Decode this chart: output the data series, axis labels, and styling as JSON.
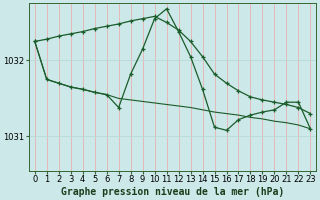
{
  "title": "Graphe pression niveau de la mer (hPa)",
  "bg_color": "#cce8e8",
  "line_color": "#1a5c2a",
  "grid_color_v": "#e8b0b0",
  "grid_color_h": "#b8d8d8",
  "xlim": [
    -0.5,
    23.5
  ],
  "ylim": [
    1030.55,
    1032.75
  ],
  "yticks": [
    1031,
    1032
  ],
  "xticks": [
    0,
    1,
    2,
    3,
    4,
    5,
    6,
    7,
    8,
    9,
    10,
    11,
    12,
    13,
    14,
    15,
    16,
    17,
    18,
    19,
    20,
    21,
    22,
    23
  ],
  "series1_x": [
    0,
    1,
    2,
    3,
    4,
    5,
    6,
    7,
    8,
    9,
    10,
    11,
    12,
    13,
    14,
    15,
    16,
    17,
    18,
    19,
    20,
    21,
    22,
    23
  ],
  "series1_y": [
    1032.25,
    1032.28,
    1032.32,
    1032.35,
    1032.38,
    1032.42,
    1032.45,
    1032.48,
    1032.52,
    1032.55,
    1032.58,
    1032.5,
    1032.4,
    1032.25,
    1032.05,
    1031.82,
    1031.7,
    1031.6,
    1031.52,
    1031.48,
    1031.45,
    1031.42,
    1031.38,
    1031.3
  ],
  "series2_x": [
    0,
    1,
    2,
    3,
    4,
    5,
    6,
    7,
    8,
    9,
    10,
    11,
    12,
    13,
    14,
    15,
    16,
    17,
    18,
    19,
    20,
    21,
    22,
    23
  ],
  "series2_y": [
    1032.25,
    1031.75,
    1031.7,
    1031.65,
    1031.62,
    1031.58,
    1031.55,
    1031.38,
    1031.82,
    1032.15,
    1032.55,
    1032.68,
    1032.38,
    1032.05,
    1031.62,
    1031.12,
    1031.08,
    1031.22,
    1031.28,
    1031.32,
    1031.35,
    1031.45,
    1031.45,
    1031.1
  ],
  "series3_x": [
    0,
    1,
    2,
    3,
    4,
    5,
    6,
    7,
    8,
    9,
    10,
    11,
    12,
    13,
    14,
    15,
    16,
    17,
    18,
    19,
    20,
    21,
    22,
    23
  ],
  "series3_y": [
    1032.25,
    1031.75,
    1031.7,
    1031.65,
    1031.62,
    1031.58,
    1031.55,
    1031.5,
    1031.48,
    1031.46,
    1031.44,
    1031.42,
    1031.4,
    1031.38,
    1031.35,
    1031.32,
    1031.3,
    1031.28,
    1031.25,
    1031.23,
    1031.2,
    1031.18,
    1031.15,
    1031.1
  ],
  "tick_fontsize": 6.0,
  "label_fontsize": 7.0
}
